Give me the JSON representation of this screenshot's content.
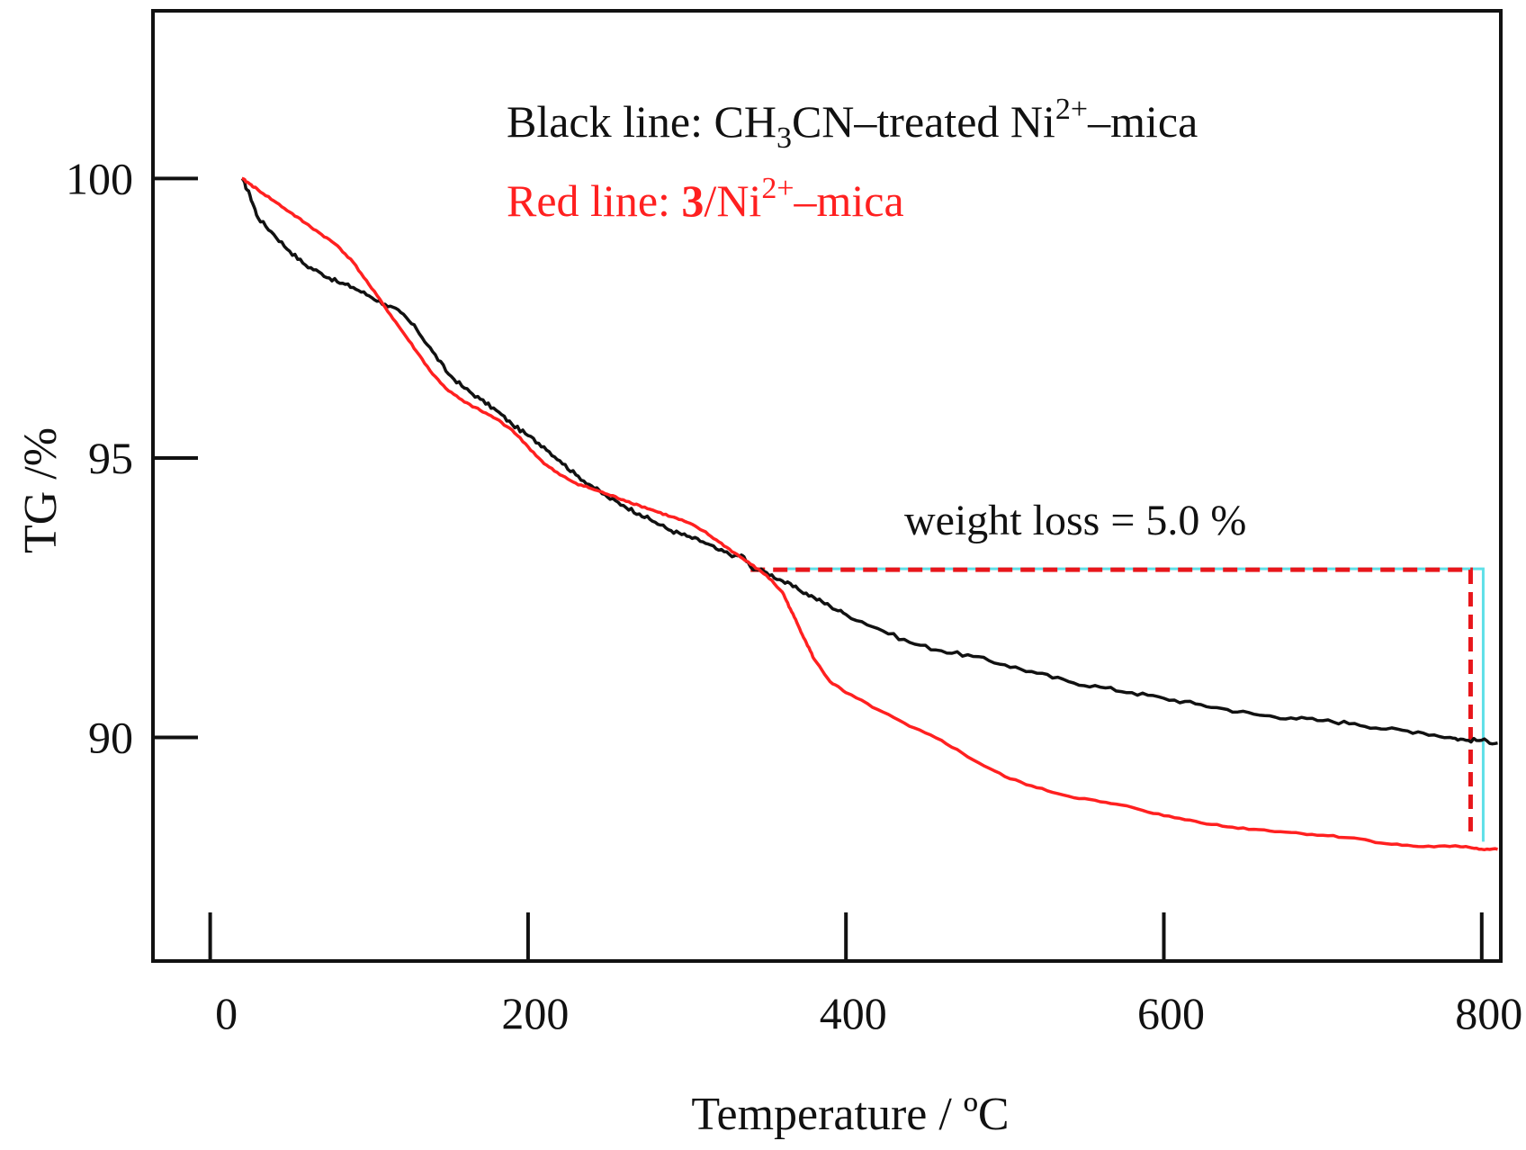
{
  "colors": {
    "black_series": "#111111",
    "red_series": "#ff2020",
    "annotation_red": "#e8161b",
    "annotation_cyan": "#5fe0e8",
    "frame": "#111111"
  },
  "chart_data": {
    "type": "line",
    "title": "",
    "xlabel": "Temperature / ºC",
    "ylabel": "TG /%",
    "xlim": [
      -36,
      812
    ],
    "ylim": [
      86.0,
      103.0
    ],
    "grid": false,
    "x_ticks": [
      0,
      200,
      400,
      600,
      800
    ],
    "x_tick_labels": [
      "0",
      "200",
      "400",
      "600",
      "800"
    ],
    "y_ticks": [
      90,
      95,
      100
    ],
    "y_tick_labels": [
      "90",
      "95",
      "100"
    ],
    "legend": {
      "placement": "top-center",
      "black": {
        "prefix": "Black line: CH",
        "sub": "3",
        "middle": "CN–treated Ni",
        "sup": "2+",
        "suffix": "–mica"
      },
      "red": {
        "prefix": "Red line: ",
        "bold": "3",
        "middle": "/Ni",
        "sup": "2+",
        "suffix": "–mica"
      }
    },
    "annotations": [
      {
        "text": "weight loss = 5.0 %",
        "from_x": 340,
        "to_x": 793,
        "level_y": 93.0,
        "bottom_y": 88.2
      }
    ],
    "series": [
      {
        "name": "CH3CN–treated Ni2+–mica",
        "color": "black",
        "x": [
          20,
          25,
          30,
          40,
          50,
          60,
          70,
          80,
          90,
          100,
          110,
          120,
          130,
          140,
          150,
          160,
          170,
          180,
          190,
          200,
          210,
          220,
          230,
          240,
          250,
          260,
          270,
          280,
          290,
          300,
          310,
          320,
          330,
          335,
          340,
          350,
          360,
          370,
          380,
          390,
          400,
          420,
          440,
          460,
          480,
          500,
          520,
          540,
          560,
          580,
          600,
          620,
          640,
          660,
          680,
          700,
          720,
          740,
          760,
          780,
          790,
          800,
          810
        ],
        "y": [
          100.0,
          99.7,
          99.3,
          99.0,
          98.7,
          98.45,
          98.3,
          98.15,
          98.05,
          97.9,
          97.75,
          97.6,
          97.3,
          96.9,
          96.5,
          96.25,
          96.05,
          95.85,
          95.6,
          95.4,
          95.2,
          94.95,
          94.7,
          94.5,
          94.3,
          94.15,
          94.0,
          93.85,
          93.7,
          93.6,
          93.5,
          93.35,
          93.25,
          93.25,
          93.05,
          92.95,
          92.8,
          92.65,
          92.5,
          92.35,
          92.2,
          91.95,
          91.7,
          91.55,
          91.45,
          91.3,
          91.15,
          91.0,
          90.9,
          90.8,
          90.7,
          90.6,
          90.5,
          90.4,
          90.35,
          90.3,
          90.25,
          90.15,
          90.1,
          90.0,
          89.95,
          89.95,
          89.9
        ]
      },
      {
        "name": "3/Ni2+–mica",
        "color": "red",
        "x": [
          20,
          25,
          30,
          40,
          50,
          60,
          70,
          80,
          90,
          100,
          110,
          120,
          130,
          140,
          150,
          160,
          170,
          180,
          190,
          200,
          210,
          220,
          230,
          240,
          250,
          260,
          270,
          280,
          290,
          300,
          310,
          320,
          330,
          340,
          350,
          360,
          365,
          370,
          375,
          380,
          390,
          400,
          420,
          440,
          460,
          480,
          500,
          520,
          540,
          560,
          580,
          600,
          620,
          640,
          660,
          680,
          700,
          720,
          740,
          760,
          780,
          790,
          800,
          810
        ],
        "y": [
          100.0,
          99.9,
          99.8,
          99.6,
          99.4,
          99.2,
          99.0,
          98.8,
          98.5,
          98.1,
          97.7,
          97.3,
          96.9,
          96.5,
          96.2,
          96.0,
          95.85,
          95.7,
          95.5,
          95.2,
          94.9,
          94.7,
          94.55,
          94.45,
          94.35,
          94.25,
          94.15,
          94.05,
          93.95,
          93.85,
          93.7,
          93.5,
          93.3,
          93.1,
          92.9,
          92.6,
          92.3,
          92.0,
          91.7,
          91.4,
          91.0,
          90.8,
          90.5,
          90.2,
          89.95,
          89.6,
          89.3,
          89.1,
          88.95,
          88.85,
          88.75,
          88.6,
          88.5,
          88.4,
          88.35,
          88.3,
          88.25,
          88.2,
          88.1,
          88.05,
          88.05,
          88.05,
          88.0,
          88.0
        ]
      }
    ]
  }
}
